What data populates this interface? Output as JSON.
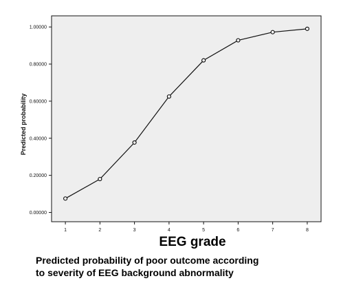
{
  "chart_data": {
    "type": "line",
    "xlabel": "EEG grade",
    "ylabel": "Predicted probability",
    "x": [
      1,
      2,
      3,
      4,
      5,
      6,
      7,
      8
    ],
    "series": [
      {
        "values": [
          0.075,
          0.18,
          0.377,
          0.625,
          0.82,
          0.928,
          0.972,
          0.99
        ]
      }
    ],
    "x_ticks": [
      "1",
      "2",
      "3",
      "4",
      "5",
      "6",
      "7",
      "8"
    ],
    "y_ticks": [
      "0.00000",
      "0.20000",
      "0.40000",
      "0.60000",
      "0.80000",
      "1.00000"
    ],
    "xlim": [
      0.6,
      8.4
    ],
    "ylim": [
      -0.05,
      1.06
    ],
    "grid": false,
    "marker": "open-circle",
    "colors": {
      "plot_background": "#eeeeee",
      "line": "#111111",
      "axis": "#111111"
    }
  },
  "caption": {
    "line1": "Predicted probability of poor outcome according",
    "line2": "to severity of EEG background abnormality"
  }
}
